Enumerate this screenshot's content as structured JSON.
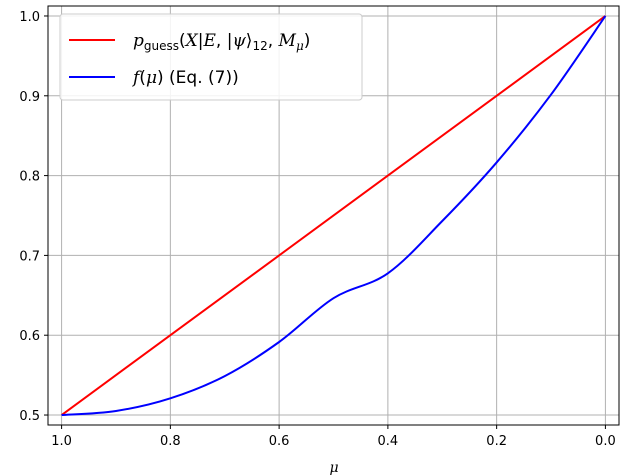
{
  "chart_data": {
    "type": "line",
    "title": "",
    "xlabel": "μ",
    "ylabel": "",
    "xlim": [
      1.025,
      -0.025
    ],
    "ylim": [
      0.4875,
      1.0125
    ],
    "x_inverted": true,
    "grid": true,
    "legend_position": "top-left",
    "xticks": [
      1.0,
      0.8,
      0.6,
      0.4,
      0.2,
      0.0
    ],
    "xtick_labels": [
      "1.0",
      "0.8",
      "0.6",
      "0.4",
      "0.2",
      "0.0"
    ],
    "yticks": [
      0.5,
      0.6,
      0.7,
      0.8,
      0.9,
      1.0
    ],
    "ytick_labels": [
      "0.5",
      "0.6",
      "0.7",
      "0.8",
      "0.9",
      "1.0"
    ],
    "series": [
      {
        "name": "p_guess(X|E,|ψ⟩12,Mμ)",
        "color": "#ff0000",
        "x": [
          1.0,
          0.8,
          0.6,
          0.4,
          0.2,
          0.0
        ],
        "y": [
          0.5,
          0.6,
          0.7,
          0.8,
          0.9,
          1.0
        ]
      },
      {
        "name": "f(μ) (Eq. (7))",
        "color": "#0000ff",
        "x": [
          1.0,
          0.9,
          0.8,
          0.7,
          0.6,
          0.5,
          0.4,
          0.3,
          0.2,
          0.1,
          0.0
        ],
        "y": [
          0.5,
          0.5051,
          0.5209,
          0.5488,
          0.5915,
          0.6464,
          0.6776,
          0.7431,
          0.8165,
          0.9015,
          1.0
        ]
      }
    ]
  }
}
